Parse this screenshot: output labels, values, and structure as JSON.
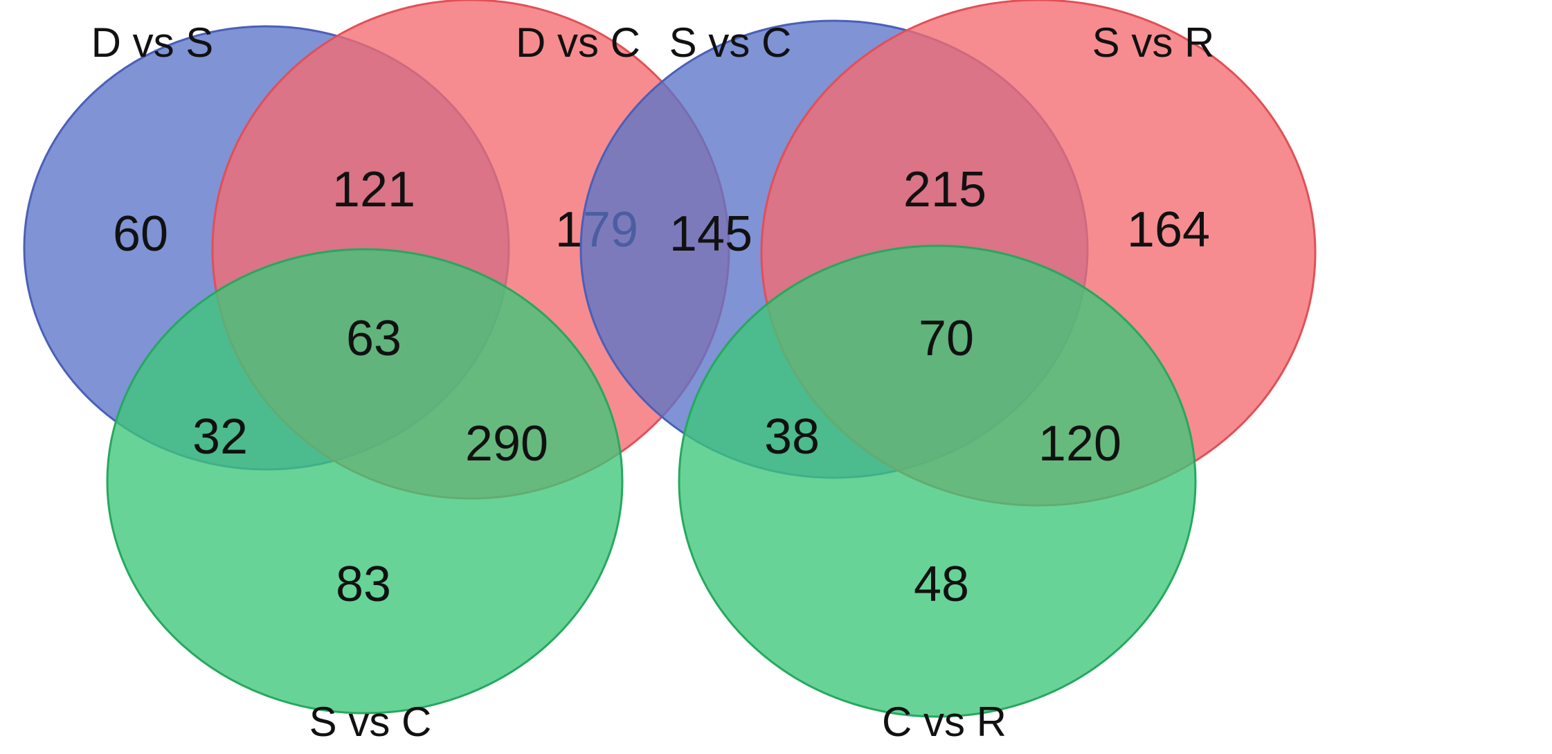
{
  "colors": {
    "blue": "#5b74c9",
    "red": "#f36b70",
    "green": "#3ec77a",
    "stroke_blue": "#4a5fb8",
    "stroke_red": "#e24f57",
    "stroke_green": "#26a85e"
  },
  "venn_left": {
    "sets": {
      "top_left": "D vs S",
      "top_right": "D vs C",
      "bottom": "S vs C"
    },
    "counts": {
      "only_top_left": "60",
      "only_top_right": "179",
      "only_bottom": "83",
      "top_left_and_top_right": "121",
      "top_left_and_bottom": "32",
      "top_right_and_bottom": "290",
      "all_three": "63"
    }
  },
  "venn_right": {
    "sets": {
      "top_left": "S vs C",
      "top_right": "S vs R",
      "bottom": "C vs R"
    },
    "counts": {
      "only_top_left": "145",
      "only_top_right": "164",
      "only_bottom": "48",
      "top_left_and_top_right": "215",
      "top_left_and_bottom": "38",
      "top_right_and_bottom": "120",
      "all_three": "70"
    }
  }
}
